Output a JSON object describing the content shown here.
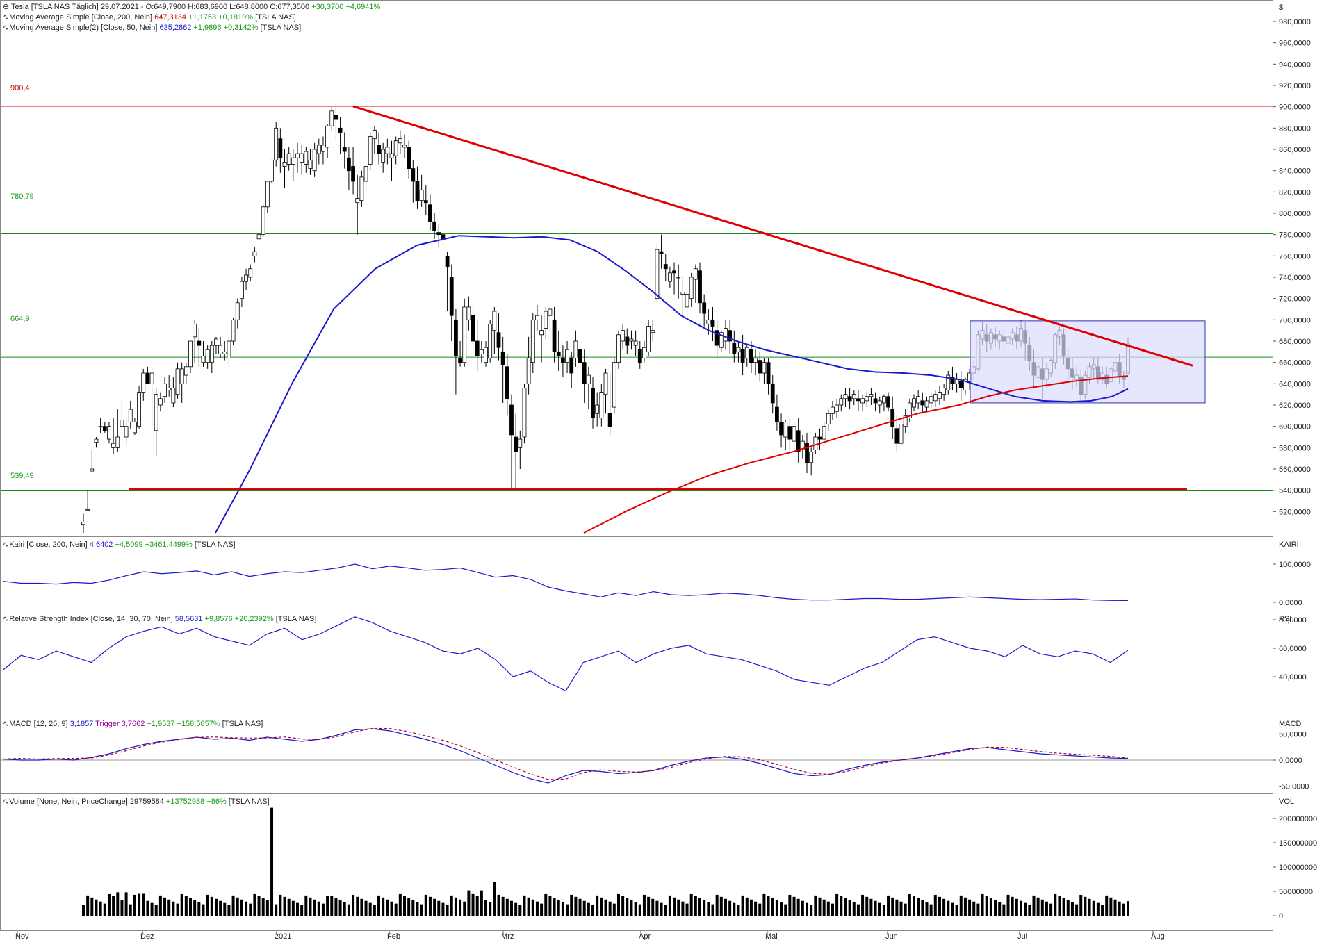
{
  "colors": {
    "up": "#ffffff",
    "down": "#000000",
    "wick": "#000000",
    "ma200": "#e00000",
    "ma50": "#1a1acc",
    "hline_red": "#e00000",
    "hline_green": "#1a8a1a",
    "trend": "#e00000",
    "box_fill": "#dcdcff",
    "box_stroke": "#3333aa",
    "ind_line": "#1a1acc",
    "macd_trigger": "#aa0033",
    "grid": "#999999"
  },
  "legend": {
    "price": {
      "name": "Tesla [TSLA NAS  Täglich]",
      "date": "29.07.2021",
      "ohlc": "O:649,7900 H:683,6900 L:648,8000 C:677,3500",
      "change": "+30,3700 +4,6941%"
    },
    "ma200": {
      "name": "Moving Average Simple [Close, 200, Nein]",
      "value": "647,3134",
      "change": "+1,1753 +0,1819%",
      "src": "[TSLA NAS]"
    },
    "ma50": {
      "name": "Moving Average Simple(2) [Close, 50, Nein]",
      "value": "635,2862",
      "change": "+1,9896 +0,3142%",
      "src": "[TSLA NAS]"
    },
    "kairi": {
      "name": "Kairi [Close, 200, Nein]",
      "value": "4,6402",
      "change": "+4,5099 +3461,4499%",
      "src": "[TSLA NAS]"
    },
    "rsi": {
      "name": "Relative Strength Index [Close, 14, 30, 70, Nein]",
      "value": "58,5631",
      "change": "+9,8576 +20,2392%",
      "src": "[TSLA NAS]"
    },
    "macd": {
      "name": "MACD [12, 26, 9]",
      "value": "3,1857",
      "trigger_label": "Trigger",
      "trigger": "3,7662",
      "change": "+1,9537 +158,5857%",
      "src": "[TSLA NAS]"
    },
    "volume": {
      "name": "Volume [None, Nein, PriceChange]",
      "value": "29759584",
      "change": "+13752988 +86%",
      "src": "[TSLA NAS]"
    }
  },
  "level_labels": {
    "l900": "900,4",
    "l780": "780,79",
    "l664": "664,9",
    "l539": "539,49"
  },
  "currency": "$",
  "panel_titles": {
    "kairi": "KAIRI",
    "rsi": "RSI",
    "macd": "MACD",
    "volume": "VOL"
  },
  "chart_data": {
    "type": "candlestick",
    "x_ticks": [
      "Nov",
      "Dez",
      "2021",
      "Feb",
      "Mrz",
      "Apr",
      "Mai",
      "Jun",
      "Jul",
      "Aug"
    ],
    "price_axis": {
      "ylim": [
        500,
        995
      ],
      "ticks": [
        "520,0000",
        "540,0000",
        "560,0000",
        "580,0000",
        "600,0000",
        "620,0000",
        "640,0000",
        "660,0000",
        "680,0000",
        "700,0000",
        "720,0000",
        "740,0000",
        "760,0000",
        "780,0000",
        "800,0000",
        "820,0000",
        "840,0000",
        "860,0000",
        "880,0000",
        "900,0000",
        "920,0000",
        "940,0000",
        "960,0000",
        "980,0000"
      ]
    },
    "horizontal_levels": [
      900.4,
      780.79,
      664.9,
      539.49
    ],
    "kairi_axis": {
      "ticks": [
        "0,0000",
        "100,0000"
      ]
    },
    "rsi_axis": {
      "ticks": [
        "40,0000",
        "60,0000",
        "80,0000"
      ],
      "bands": [
        30,
        70
      ]
    },
    "macd_axis": {
      "ticks": [
        "-50,0000",
        "0,0000",
        "50,0000"
      ]
    },
    "volume_axis": {
      "ticks": [
        "0",
        "50000000",
        "100000000",
        "150000000",
        "200000000"
      ]
    },
    "last_candle": {
      "open": 649.79,
      "high": 683.69,
      "low": 648.8,
      "close": 677.35
    },
    "ma200_last": 647.31,
    "ma50_last": 635.29,
    "kairi_last": 4.64,
    "rsi_last": 58.56,
    "macd_last": 3.19,
    "trigger_last": 3.77,
    "volume_last": 29759584
  }
}
